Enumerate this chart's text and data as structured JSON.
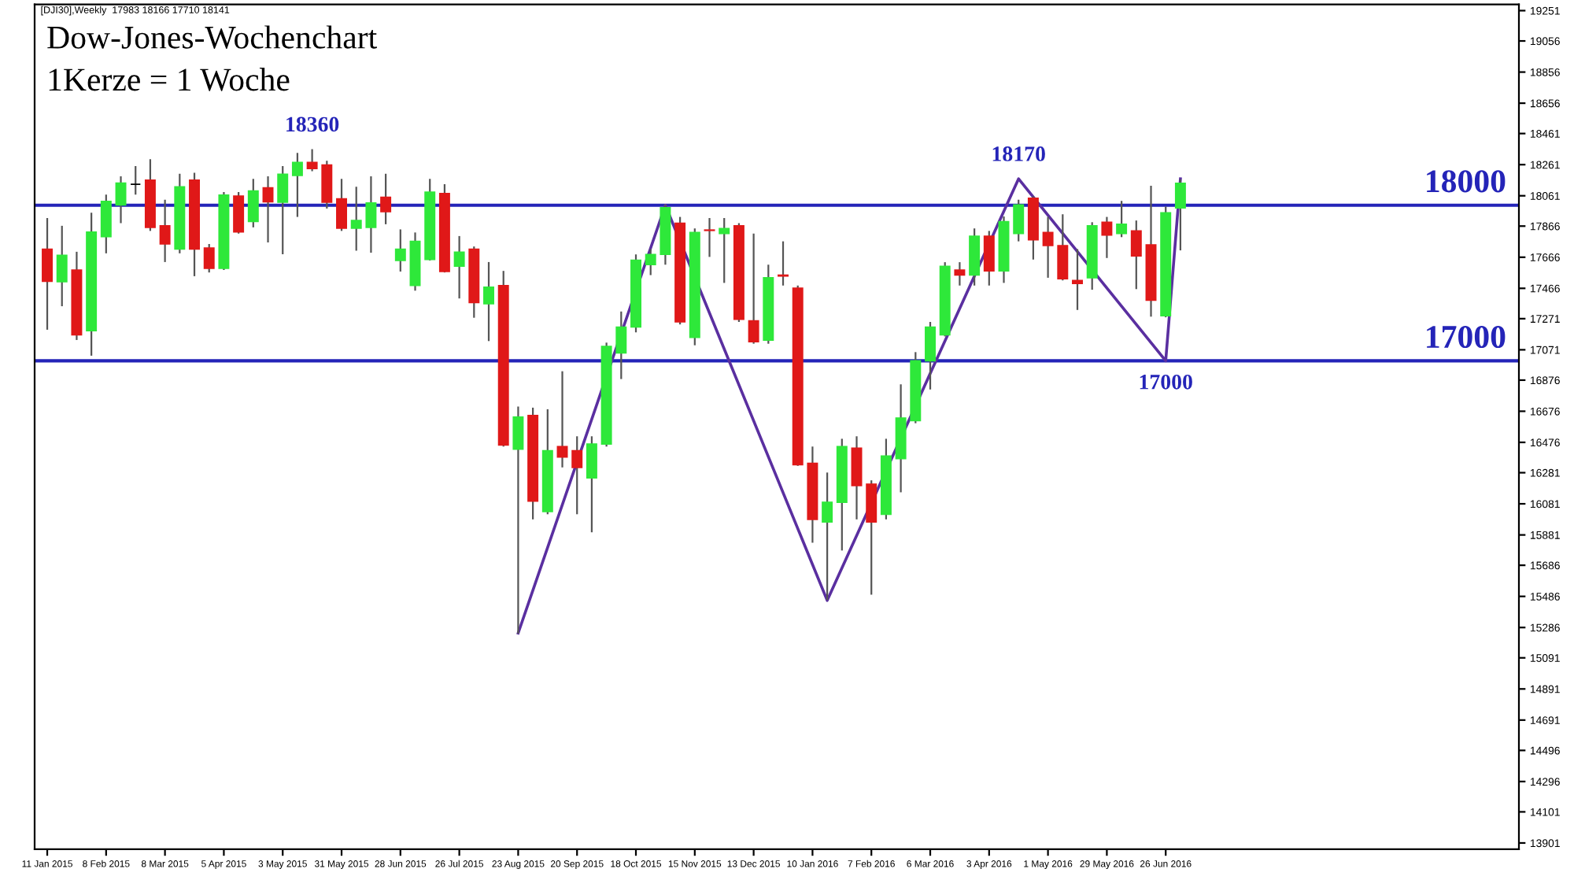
{
  "chart_data": {
    "type": "candlestick",
    "title": "Dow-Jones-Wochenchart",
    "subtitle": "1Kerze = 1 Woche",
    "x": [
      "2015-01-11",
      "2015-01-18",
      "2015-01-25",
      "2015-02-01",
      "2015-02-08",
      "2015-02-15",
      "2015-02-22",
      "2015-03-01",
      "2015-03-08",
      "2015-03-15",
      "2015-03-22",
      "2015-03-29",
      "2015-04-05",
      "2015-04-12",
      "2015-04-19",
      "2015-04-26",
      "2015-05-03",
      "2015-05-10",
      "2015-05-17",
      "2015-05-24",
      "2015-05-31",
      "2015-06-07",
      "2015-06-14",
      "2015-06-21",
      "2015-06-28",
      "2015-07-05",
      "2015-07-12",
      "2015-07-19",
      "2015-07-26",
      "2015-08-02",
      "2015-08-09",
      "2015-08-16",
      "2015-08-23",
      "2015-08-30",
      "2015-09-06",
      "2015-09-13",
      "2015-09-20",
      "2015-09-27",
      "2015-10-04",
      "2015-10-11",
      "2015-10-18",
      "2015-10-25",
      "2015-11-01",
      "2015-11-08",
      "2015-11-15",
      "2015-11-22",
      "2015-11-29",
      "2015-12-06",
      "2015-12-13",
      "2015-12-20",
      "2015-12-27",
      "2016-01-03",
      "2016-01-10",
      "2016-01-17",
      "2016-01-24",
      "2016-01-31",
      "2016-02-07",
      "2016-02-14",
      "2016-02-21",
      "2016-02-28",
      "2016-03-06",
      "2016-03-13",
      "2016-03-20",
      "2016-03-27",
      "2016-04-03",
      "2016-04-10",
      "2016-04-17",
      "2016-04-24",
      "2016-05-01",
      "2016-05-08",
      "2016-05-15",
      "2016-05-22",
      "2016-05-29",
      "2016-06-05",
      "2016-06-12",
      "2016-06-19",
      "2016-06-26",
      "2016-07-03"
    ],
    "ohlc": [
      [
        17718,
        17918,
        17200,
        17511
      ],
      [
        17508,
        17868,
        17351,
        17678
      ],
      [
        17584,
        17701,
        17134,
        17167
      ],
      [
        17194,
        17952,
        17033,
        17828
      ],
      [
        17798,
        18069,
        17691,
        18025
      ],
      [
        18002,
        18186,
        17885,
        18142
      ],
      [
        18135,
        18252,
        18069,
        18135
      ],
      [
        18162,
        18296,
        17835,
        17858
      ],
      [
        17868,
        18035,
        17635,
        17751
      ],
      [
        17718,
        18202,
        17691,
        18119
      ],
      [
        18162,
        18209,
        17544,
        17718
      ],
      [
        17725,
        17751,
        17568,
        17594
      ],
      [
        17594,
        18085,
        17584,
        18065
      ],
      [
        18059,
        18085,
        17818,
        17828
      ],
      [
        17895,
        18169,
        17858,
        18092
      ],
      [
        18112,
        18186,
        17761,
        18022
      ],
      [
        18019,
        18252,
        17685,
        18199
      ],
      [
        18192,
        18336,
        17925,
        18276
      ],
      [
        18276,
        18360,
        18219,
        18236
      ],
      [
        18259,
        18286,
        17979,
        18019
      ],
      [
        18042,
        18169,
        17835,
        17852
      ],
      [
        17852,
        18119,
        17708,
        17902
      ],
      [
        17858,
        18186,
        17695,
        18015
      ],
      [
        18052,
        18202,
        17878,
        17959
      ],
      [
        17645,
        17845,
        17574,
        17718
      ],
      [
        17484,
        17825,
        17451,
        17768
      ],
      [
        17651,
        18169,
        17645,
        18085
      ],
      [
        18075,
        18136,
        17568,
        17574
      ],
      [
        17608,
        17802,
        17401,
        17698
      ],
      [
        17718,
        17735,
        17277,
        17374
      ],
      [
        17367,
        17635,
        17127,
        17474
      ],
      [
        17484,
        17578,
        16449,
        16459
      ],
      [
        16432,
        16706,
        15246,
        16639
      ],
      [
        16649,
        16699,
        15981,
        16098
      ],
      [
        16031,
        16689,
        16014,
        16422
      ],
      [
        16449,
        16933,
        16315,
        16382
      ],
      [
        16422,
        16515,
        16014,
        16315
      ],
      [
        16248,
        16515,
        15898,
        16465
      ],
      [
        16465,
        17117,
        16449,
        17093
      ],
      [
        17050,
        17317,
        16883,
        17217
      ],
      [
        17217,
        17684,
        17183,
        17647
      ],
      [
        17618,
        17718,
        17551,
        17684
      ],
      [
        17684,
        18002,
        17618,
        17985
      ],
      [
        17885,
        17925,
        17234,
        17250
      ],
      [
        17150,
        17851,
        17100,
        17825
      ],
      [
        17841,
        17918,
        17668,
        17838
      ],
      [
        17818,
        17918,
        17501,
        17851
      ],
      [
        17868,
        17885,
        17250,
        17267
      ],
      [
        17257,
        17818,
        17110,
        17123
      ],
      [
        17133,
        17618,
        17110,
        17534
      ],
      [
        17551,
        17768,
        17484,
        17545
      ],
      [
        17467,
        17484,
        16325,
        16332
      ],
      [
        16342,
        16449,
        15831,
        15981
      ],
      [
        15964,
        16282,
        15463,
        16091
      ],
      [
        16091,
        16499,
        15781,
        16449
      ],
      [
        16439,
        16515,
        15981,
        16198
      ],
      [
        16208,
        16232,
        15497,
        15964
      ],
      [
        16014,
        16499,
        15981,
        16388
      ],
      [
        16372,
        16849,
        16155,
        16632
      ],
      [
        16615,
        17056,
        16599,
        17000
      ],
      [
        17000,
        17250,
        16816,
        17217
      ],
      [
        17167,
        17634,
        17157,
        17608
      ],
      [
        17584,
        17634,
        17484,
        17551
      ],
      [
        17551,
        17851,
        17484,
        17801
      ],
      [
        17801,
        17835,
        17484,
        17578
      ],
      [
        17578,
        17928,
        17501,
        17895
      ],
      [
        17818,
        18035,
        17768,
        18002
      ],
      [
        18045,
        18058,
        17651,
        17778
      ],
      [
        17825,
        17925,
        17534,
        17741
      ],
      [
        17741,
        17942,
        17517,
        17527
      ],
      [
        17517,
        17718,
        17327,
        17497
      ],
      [
        17534,
        17891,
        17457,
        17868
      ],
      [
        17891,
        17925,
        17661,
        17808
      ],
      [
        17818,
        18028,
        17795,
        17878
      ],
      [
        17835,
        17902,
        17461,
        17674
      ],
      [
        17745,
        18125,
        17284,
        17390
      ],
      [
        17290,
        17992,
        17280,
        17952
      ],
      [
        17983,
        18166,
        17710,
        18141
      ]
    ],
    "colors": [
      "#e01818",
      "#2ee83a",
      "#e01818",
      "#2ee83a",
      "#2ee83a",
      "#2ee83a",
      "#000000",
      "#e01818",
      "#e01818",
      "#2ee83a",
      "#e01818",
      "#e01818",
      "#2ee83a",
      "#e01818",
      "#2ee83a",
      "#e01818",
      "#2ee83a",
      "#2ee83a",
      "#e01818",
      "#e01818",
      "#e01818",
      "#2ee83a",
      "#2ee83a",
      "#e01818",
      "#2ee83a",
      "#2ee83a",
      "#2ee83a",
      "#e01818",
      "#2ee83a",
      "#e01818",
      "#2ee83a",
      "#e01818",
      "#2ee83a",
      "#e01818",
      "#2ee83a",
      "#e01818",
      "#e01818",
      "#2ee83a",
      "#2ee83a",
      "#2ee83a",
      "#2ee83a",
      "#2ee83a",
      "#2ee83a",
      "#e01818",
      "#2ee83a",
      "#e01818",
      "#2ee83a",
      "#e01818",
      "#e01818",
      "#2ee83a",
      "#e01818",
      "#e01818",
      "#e01818",
      "#2ee83a",
      "#2ee83a",
      "#e01818",
      "#e01818",
      "#2ee83a",
      "#2ee83a",
      "#2ee83a",
      "#2ee83a",
      "#2ee83a",
      "#e01818",
      "#2ee83a",
      "#e01818",
      "#2ee83a",
      "#2ee83a",
      "#e01818",
      "#e01818",
      "#e01818",
      "#e01818",
      "#2ee83a",
      "#e01818",
      "#2ee83a",
      "#e01818",
      "#e01818",
      "#2ee83a",
      "#2ee83a"
    ],
    "series": [
      {
        "type": "line",
        "color": "#5a2fa0",
        "x": [
          "2015-08-23",
          "2015-11-01",
          "2016-01-17",
          "2016-04-17",
          "2016-06-26",
          "2016-07-03"
        ],
        "values": [
          15250,
          18000,
          15460,
          18170,
          17000,
          18170
        ]
      }
    ],
    "ref_lines": [
      {
        "axis": "y",
        "value": 18000,
        "label": "18000",
        "color": "#2424b8"
      },
      {
        "axis": "y",
        "value": 17000,
        "label": "17000",
        "color": "#2424b8"
      }
    ],
    "annotations": [
      "[DJI30],Weekly  17983 18166 17710 18141",
      "18360",
      {
        "text": "18170",
        "x": "2016-04-17",
        "y": 18170
      },
      {
        "text": "17000",
        "x": "2016-06-26",
        "y": 17000
      }
    ],
    "xlim": [
      "2015-01-05",
      "2016-12-11"
    ],
    "xticks": [
      {
        "value": "2015-01-11",
        "label": "11 Jan 2015"
      },
      {
        "value": "2015-02-08",
        "label": "8 Feb 2015"
      },
      {
        "value": "2015-03-08",
        "label": "8 Mar 2015"
      },
      {
        "value": "2015-04-05",
        "label": "5 Apr 2015"
      },
      {
        "value": "2015-05-03",
        "label": "3 May 2015"
      },
      {
        "value": "2015-05-31",
        "label": "31 May 2015"
      },
      {
        "value": "2015-06-28",
        "label": "28 Jun 2015"
      },
      {
        "value": "2015-07-26",
        "label": "26 Jul 2015"
      },
      {
        "value": "2015-08-23",
        "label": "23 Aug 2015"
      },
      {
        "value": "2015-09-20",
        "label": "20 Sep 2015"
      },
      {
        "value": "2015-10-18",
        "label": "18 Oct 2015"
      },
      {
        "value": "2015-11-15",
        "label": "15 Nov 2015"
      },
      {
        "value": "2015-12-13",
        "label": "13 Dec 2015"
      },
      {
        "value": "2016-01-10",
        "label": "10 Jan 2016"
      },
      {
        "value": "2016-02-07",
        "label": "7 Feb 2016"
      },
      {
        "value": "2016-03-06",
        "label": "6 Mar 2016"
      },
      {
        "value": "2016-04-03",
        "label": "3 Apr 2016"
      },
      {
        "value": "2016-05-01",
        "label": "1 May 2016"
      },
      {
        "value": "2016-05-29",
        "label": "29 May 2016"
      },
      {
        "value": "2016-06-26",
        "label": "26 Jun 2016"
      }
    ],
    "ylim": [
      13861,
      19291
    ],
    "yticks": [
      13901,
      14101,
      14296,
      14496,
      14691,
      14891,
      15091,
      15286,
      15486,
      15686,
      15881,
      16081,
      16281,
      16476,
      16676,
      16876,
      17071,
      17271,
      17466,
      17666,
      17866,
      18061,
      18261,
      18461,
      18656,
      18856,
      19056,
      19251
    ],
    "grid": false,
    "legend": false
  }
}
